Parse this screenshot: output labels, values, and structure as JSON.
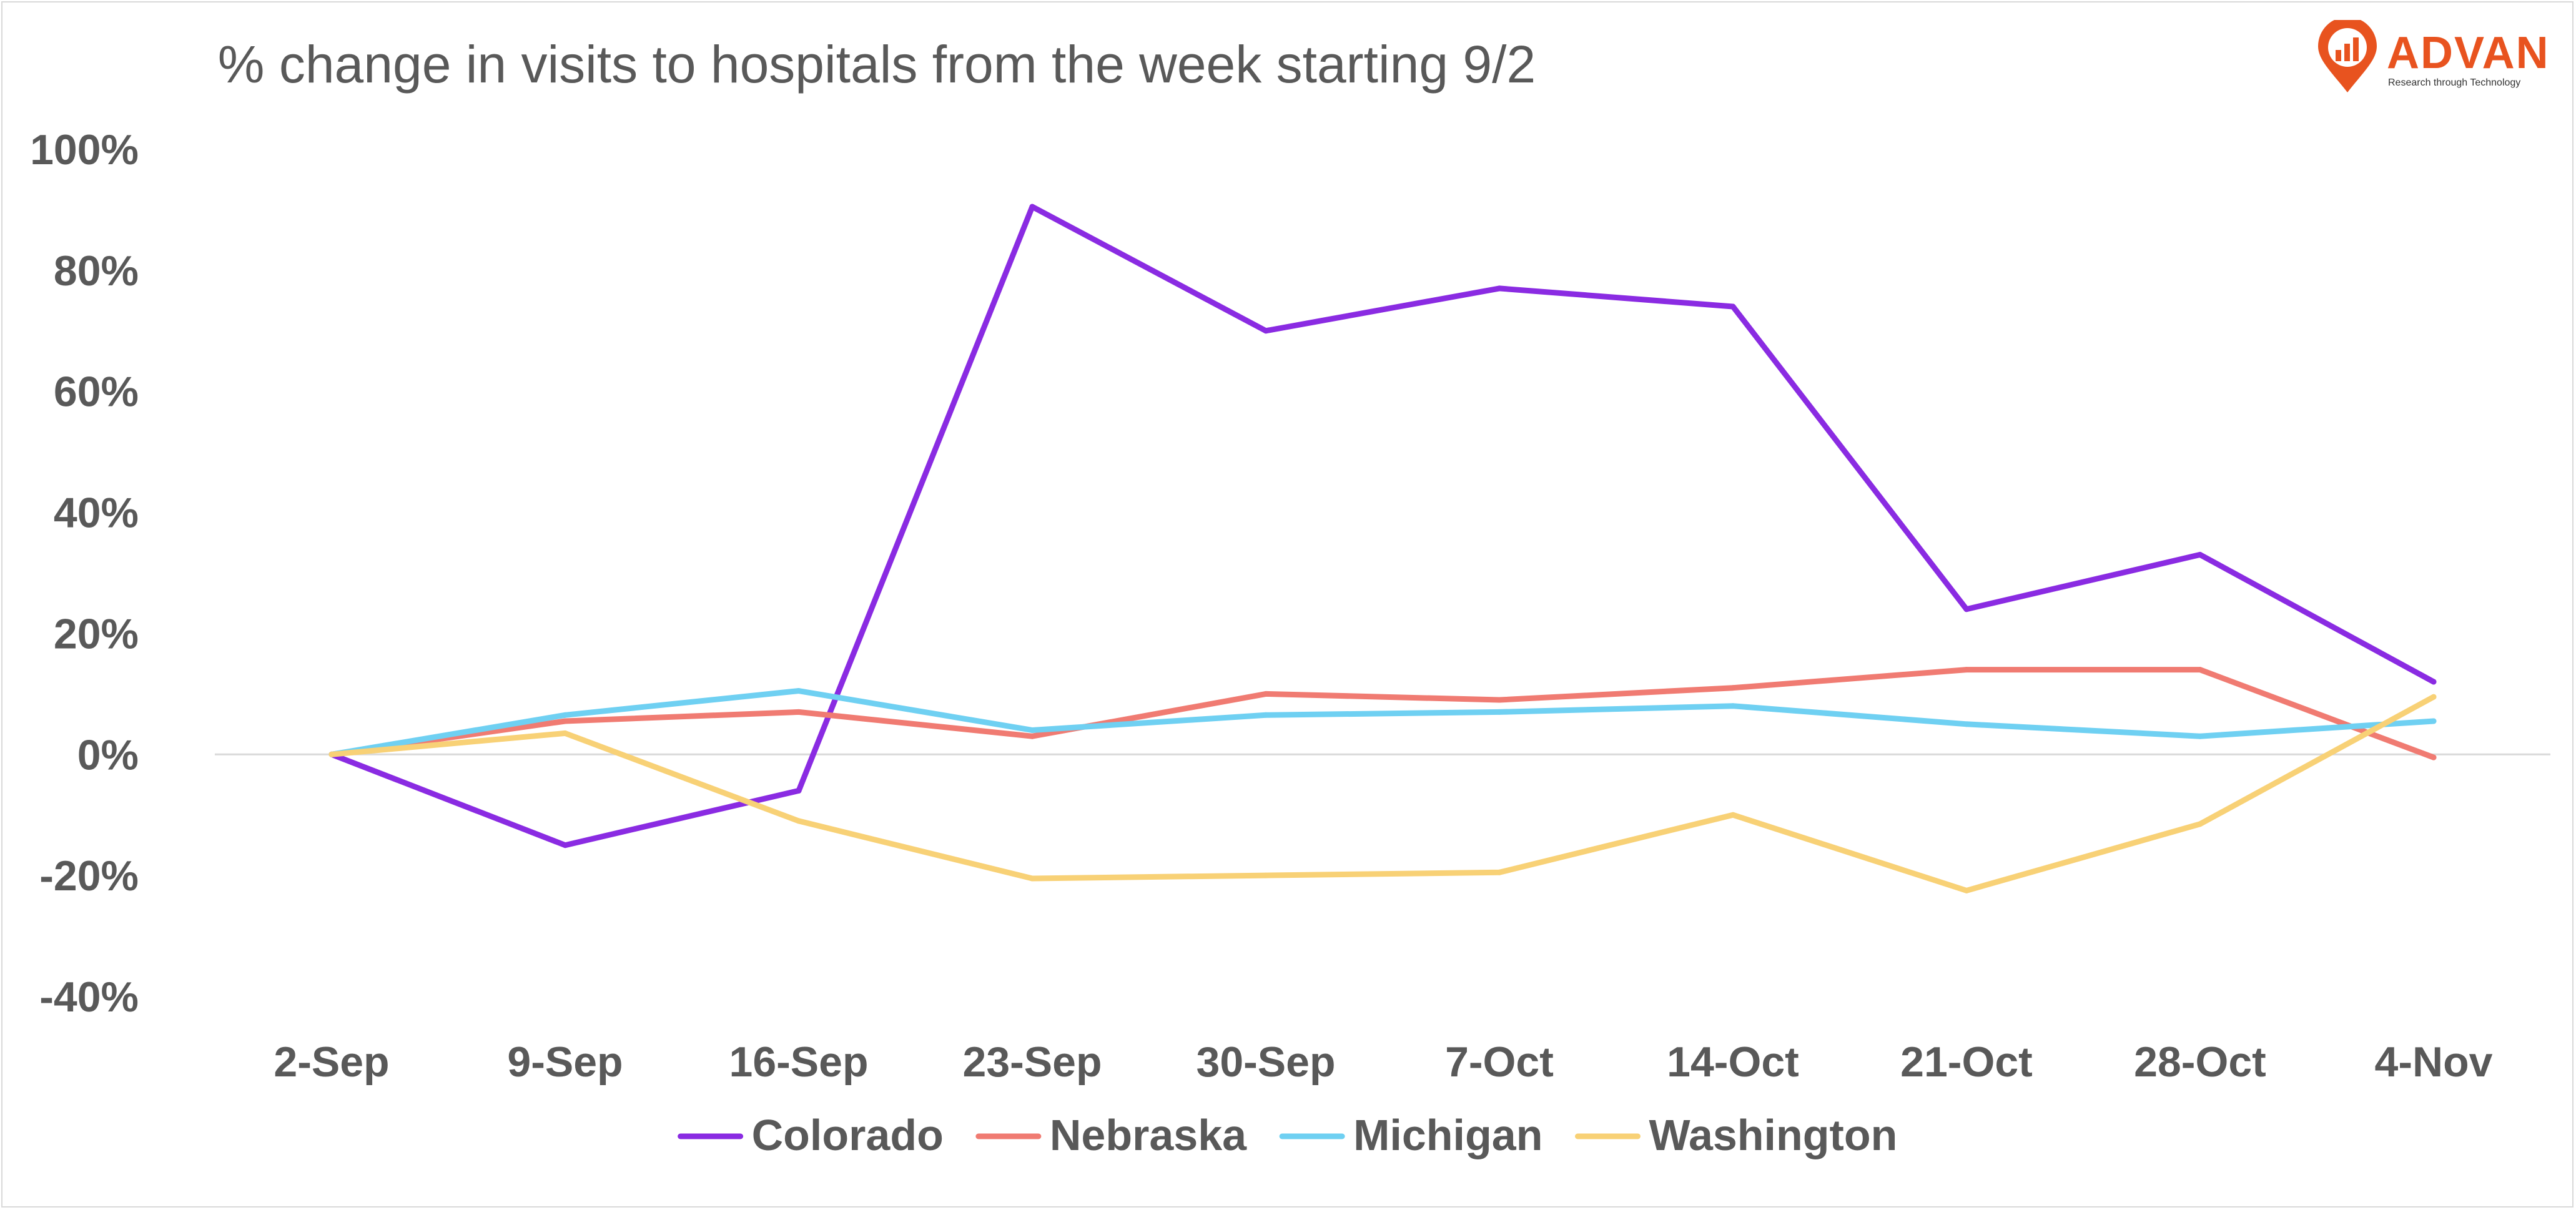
{
  "brand": {
    "name": "ADVAN",
    "tagline": "Research through Technology",
    "color": "#e8531f"
  },
  "chart_data": {
    "type": "line",
    "title": "% change in visits to hospitals from the week starting  9/2",
    "xlabel": "",
    "ylabel": "",
    "categories": [
      "2-Sep",
      "9-Sep",
      "16-Sep",
      "23-Sep",
      "30-Sep",
      "7-Oct",
      "14-Oct",
      "21-Oct",
      "28-Oct",
      "4-Nov"
    ],
    "ylim": [
      -0.4,
      1.0
    ],
    "yticks": [
      -0.4,
      -0.2,
      0,
      0.2,
      0.4,
      0.6,
      0.8,
      1.0
    ],
    "ytick_labels": [
      "-40%",
      "-20%",
      "0%",
      "20%",
      "40%",
      "60%",
      "80%",
      "100%"
    ],
    "grid": "zero-line only",
    "legend_position": "bottom",
    "series": [
      {
        "name": "Colorado",
        "color": "#8a2be2",
        "values": [
          0,
          -0.15,
          -0.06,
          0.905,
          0.7,
          0.77,
          0.74,
          0.24,
          0.33,
          0.12
        ]
      },
      {
        "name": "Nebraska",
        "color": "#f07b72",
        "values": [
          0,
          0.055,
          0.07,
          0.03,
          0.1,
          0.09,
          0.11,
          0.14,
          0.14,
          -0.005
        ]
      },
      {
        "name": "Michigan",
        "color": "#6fd0f2",
        "values": [
          0,
          0.065,
          0.105,
          0.04,
          0.065,
          0.07,
          0.08,
          0.05,
          0.03,
          0.055
        ]
      },
      {
        "name": "Washington",
        "color": "#f8d176",
        "values": [
          0,
          0.035,
          -0.11,
          -0.205,
          -0.2,
          -0.195,
          -0.1,
          -0.225,
          -0.115,
          0.095
        ]
      }
    ]
  }
}
